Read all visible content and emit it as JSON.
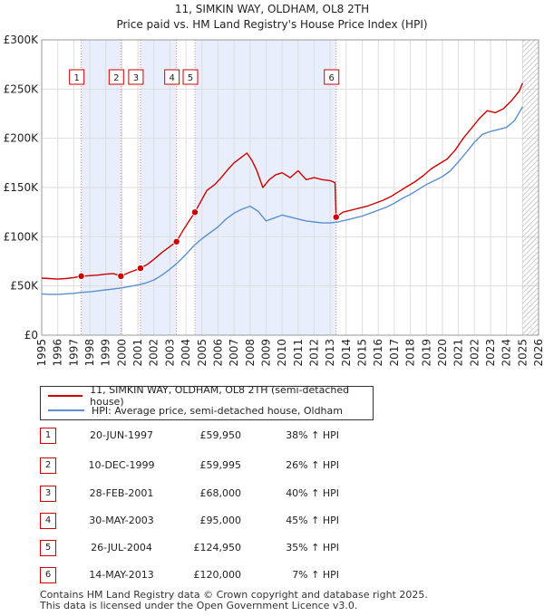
{
  "chart_data": {
    "type": "line",
    "title": "11, SIMKIN WAY, OLDHAM, OL8 2TH",
    "subtitle": "Price paid vs. HM Land Registry's House Price Index (HPI)",
    "xlim": [
      1995,
      2026
    ],
    "ylim": [
      0,
      300000
    ],
    "x_ticks": [
      "1995",
      "1996",
      "1997",
      "1998",
      "1999",
      "2000",
      "2001",
      "2002",
      "2003",
      "2004",
      "2005",
      "2006",
      "2007",
      "2008",
      "2009",
      "2010",
      "2011",
      "2012",
      "2013",
      "2014",
      "2015",
      "2016",
      "2017",
      "2018",
      "2019",
      "2020",
      "2021",
      "2022",
      "2023",
      "2024",
      "2025",
      "2026"
    ],
    "y_ticks": [
      {
        "value": 0,
        "label": "£0"
      },
      {
        "value": 50000,
        "label": "£50K"
      },
      {
        "value": 100000,
        "label": "£100K"
      },
      {
        "value": 150000,
        "label": "£150K"
      },
      {
        "value": 200000,
        "label": "£200K"
      },
      {
        "value": 250000,
        "label": "£250K"
      },
      {
        "value": 300000,
        "label": "£300K"
      }
    ],
    "forecast_from": 2025.0,
    "colors": {
      "property": "#cc0000",
      "hpi": "#5b8fd0",
      "band": "#e8eefb",
      "grid": "#dddddd",
      "sale_line": "#e88080"
    },
    "series": [
      {
        "name": "11, SIMKIN WAY, OLDHAM, OL8 2TH (semi-detached house)",
        "x": [
          1995.0,
          1995.5,
          1996.0,
          1996.5,
          1997.0,
          1997.47,
          1998.0,
          1998.5,
          1999.0,
          1999.5,
          1999.94,
          2000.5,
          2001.16,
          2001.6,
          2002.0,
          2002.5,
          2003.0,
          2003.41,
          2003.8,
          2004.2,
          2004.56,
          2004.9,
          2005.3,
          2005.8,
          2006.2,
          2006.6,
          2007.0,
          2007.4,
          2007.8,
          2008.1,
          2008.4,
          2008.8,
          2009.2,
          2009.6,
          2010.0,
          2010.5,
          2011.0,
          2011.5,
          2012.0,
          2012.5,
          2013.0,
          2013.3,
          2013.37,
          2013.8,
          2014.3,
          2014.8,
          2015.3,
          2015.8,
          2016.3,
          2016.8,
          2017.3,
          2017.8,
          2018.3,
          2018.8,
          2019.3,
          2019.8,
          2020.3,
          2020.8,
          2021.3,
          2021.8,
          2022.3,
          2022.8,
          2023.3,
          2023.8,
          2024.3,
          2024.8,
          2025.0
        ],
        "y": [
          58000,
          57500,
          57000,
          57500,
          58500,
          59950,
          60500,
          61000,
          62000,
          62500,
          59995,
          64000,
          68000,
          72000,
          77000,
          84000,
          90000,
          95000,
          106000,
          116000,
          124950,
          135000,
          147000,
          153000,
          160000,
          168000,
          175000,
          180000,
          185000,
          178000,
          168000,
          150000,
          158000,
          163000,
          165000,
          160000,
          167000,
          158000,
          160000,
          158000,
          157000,
          155000,
          120000,
          125000,
          127000,
          129000,
          131000,
          134000,
          137000,
          141000,
          146000,
          151000,
          156000,
          162000,
          169000,
          174000,
          179000,
          188000,
          200000,
          210000,
          220000,
          228000,
          226000,
          230000,
          238000,
          248000,
          256000
        ]
      },
      {
        "name": "HPI: Average price, semi-detached house, Oldham",
        "x": [
          1995.0,
          1995.5,
          1996.0,
          1996.5,
          1997.0,
          1997.5,
          1998.0,
          1998.5,
          1999.0,
          1999.5,
          2000.0,
          2000.5,
          2001.0,
          2001.5,
          2002.0,
          2002.5,
          2003.0,
          2003.5,
          2004.0,
          2004.5,
          2005.0,
          2005.5,
          2006.0,
          2006.5,
          2007.0,
          2007.5,
          2008.0,
          2008.5,
          2009.0,
          2009.5,
          2010.0,
          2010.5,
          2011.0,
          2011.5,
          2012.0,
          2012.5,
          2013.0,
          2013.5,
          2014.0,
          2014.5,
          2015.0,
          2015.5,
          2016.0,
          2016.5,
          2017.0,
          2017.5,
          2018.0,
          2018.5,
          2019.0,
          2019.5,
          2020.0,
          2020.5,
          2021.0,
          2021.5,
          2022.0,
          2022.5,
          2023.0,
          2023.5,
          2024.0,
          2024.5,
          2025.0
        ],
        "y": [
          42000,
          41500,
          41500,
          42000,
          42500,
          43500,
          44000,
          45000,
          46000,
          47000,
          48000,
          49500,
          51000,
          53000,
          56000,
          61000,
          67000,
          74000,
          82000,
          91000,
          98000,
          104000,
          110000,
          118000,
          124000,
          128000,
          131000,
          126000,
          116000,
          119000,
          122000,
          120000,
          118000,
          116000,
          115000,
          114000,
          114000,
          115000,
          117000,
          119000,
          121000,
          124000,
          127000,
          130000,
          134000,
          139000,
          143000,
          148000,
          153000,
          157000,
          161000,
          167000,
          176000,
          186000,
          196000,
          204000,
          207000,
          209000,
          211000,
          218000,
          232000
        ]
      }
    ],
    "sales": [
      {
        "num": "1",
        "x": 1997.47,
        "y": 59950
      },
      {
        "num": "2",
        "x": 1999.94,
        "y": 59995
      },
      {
        "num": "3",
        "x": 2001.16,
        "y": 68000
      },
      {
        "num": "4",
        "x": 2003.41,
        "y": 95000
      },
      {
        "num": "5",
        "x": 2004.56,
        "y": 124950
      },
      {
        "num": "6",
        "x": 2013.37,
        "y": 120000
      }
    ]
  },
  "legend": {
    "property": "11, SIMKIN WAY, OLDHAM, OL8 2TH (semi-detached house)",
    "hpi": "HPI: Average price, semi-detached house, Oldham"
  },
  "transactions": [
    {
      "num": "1",
      "date": "20-JUN-1997",
      "price": "£59,950",
      "hpi": "38% ↑ HPI"
    },
    {
      "num": "2",
      "date": "10-DEC-1999",
      "price": "£59,995",
      "hpi": "26% ↑ HPI"
    },
    {
      "num": "3",
      "date": "28-FEB-2001",
      "price": "£68,000",
      "hpi": "40% ↑ HPI"
    },
    {
      "num": "4",
      "date": "30-MAY-2003",
      "price": "£95,000",
      "hpi": "45% ↑ HPI"
    },
    {
      "num": "5",
      "date": "26-JUL-2004",
      "price": "£124,950",
      "hpi": "35% ↑ HPI"
    },
    {
      "num": "6",
      "date": "14-MAY-2013",
      "price": "£120,000",
      "hpi": "7% ↑ HPI"
    }
  ],
  "footer": {
    "line1": "Contains HM Land Registry data © Crown copyright and database right 2025.",
    "line2": "This data is licensed under the Open Government Licence v3.0."
  }
}
